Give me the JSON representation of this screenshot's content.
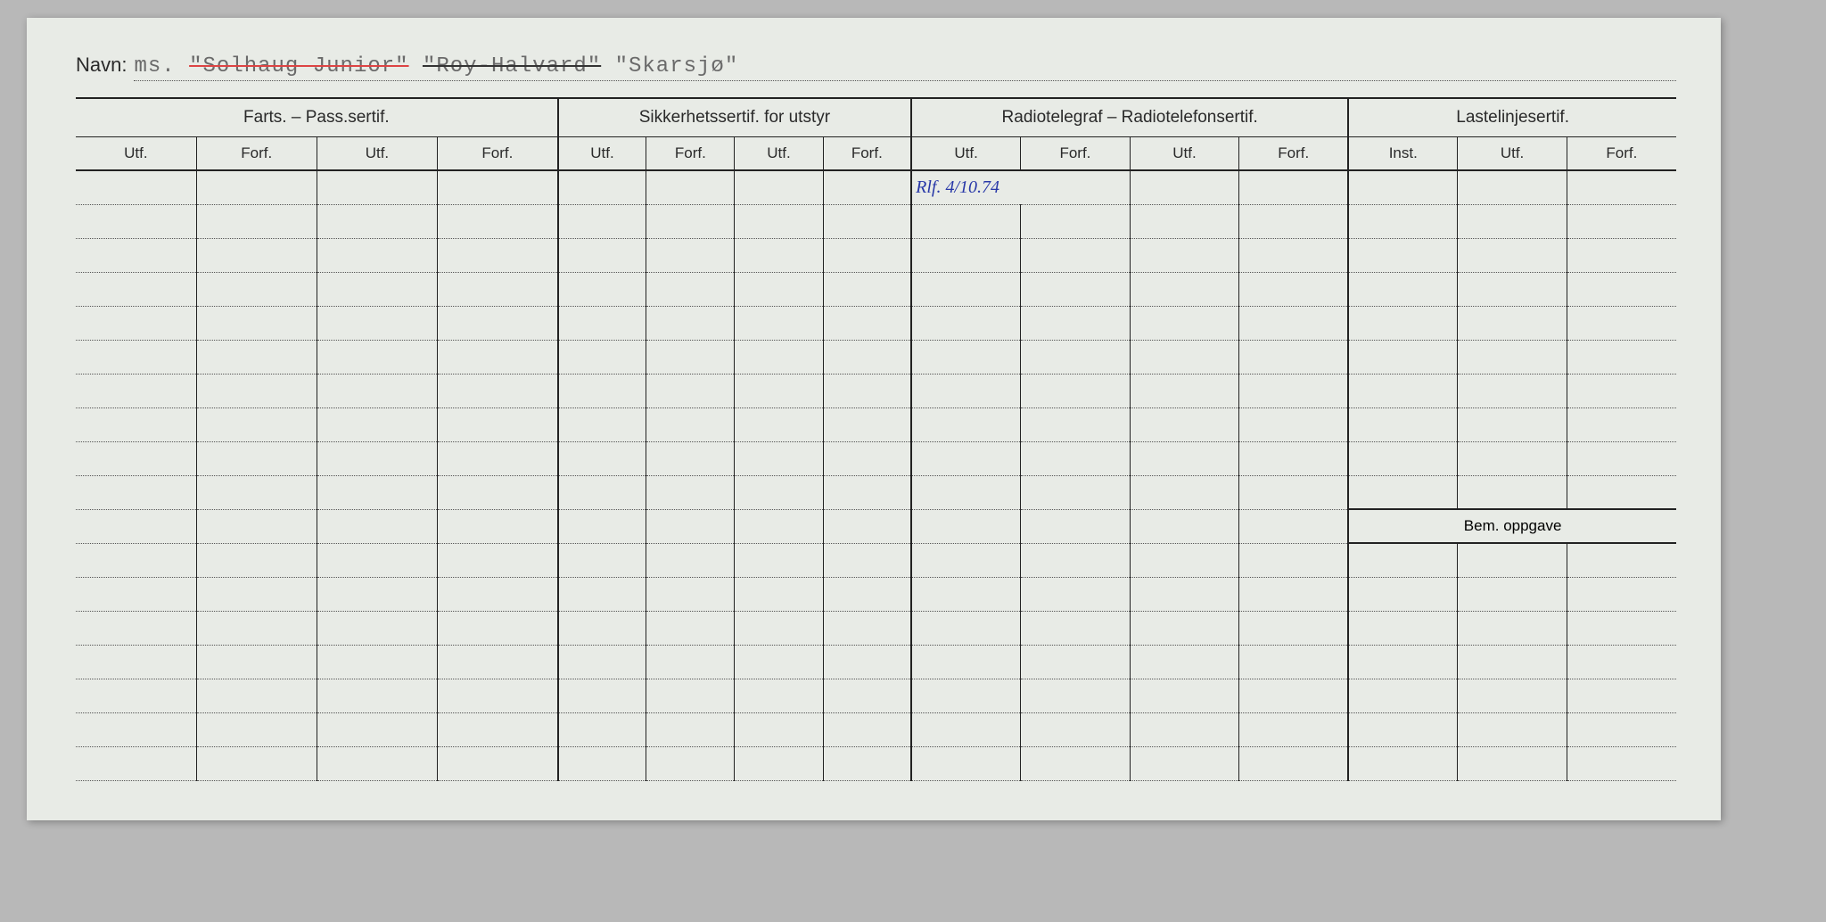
{
  "navn": {
    "label": "Navn:",
    "prefix": "ms.",
    "name1": "\"Solhaug Junior\"",
    "name2": "\"Roy-Halvard\"",
    "name3": "\"Skarsjø\""
  },
  "groups": [
    {
      "title": "Farts. – Pass.sertif.",
      "cols": [
        "Utf.",
        "Forf.",
        "Utf.",
        "Forf."
      ]
    },
    {
      "title": "Sikkerhetssertif. for utstyr",
      "cols": [
        "Utf.",
        "Forf.",
        "Utf.",
        "Forf."
      ]
    },
    {
      "title": "Radiotelegraf – Radiotelefonsertif.",
      "cols": [
        "Utf.",
        "Forf.",
        "Utf.",
        "Forf."
      ]
    },
    {
      "title": "Lastelinjesertif.",
      "cols": [
        "Inst.",
        "Utf.",
        "Forf."
      ]
    }
  ],
  "bem_label": "Bem. oppgave",
  "handwritten_entry": "Rlf. 4/10.74",
  "row_count": 18,
  "bem_row_index": 10,
  "colors": {
    "page_bg": "#b8b8b8",
    "card_bg": "#e8ebe6",
    "ink": "#2a2a2a",
    "line": "#222222",
    "dotted": "#555555",
    "typed": "#6a6a6a",
    "strike_red": "#d44444",
    "hand_blue": "#2838a8",
    "hole": "#1a1a1a"
  },
  "hole_count": 12
}
